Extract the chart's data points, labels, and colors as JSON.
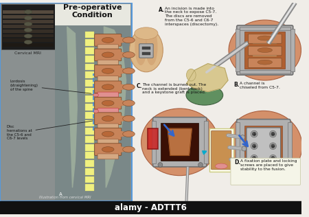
{
  "watermark": "alamy - ADTTT6",
  "watermark_color": "#ffffff",
  "watermark_bg": "#111111",
  "bg_color": "#f0ede8",
  "left_panel": {
    "title": "Pre-operative\nCondition",
    "border_color": "#5599dd",
    "bg_color": "#8a9090",
    "mri_label": "Cervical MRI",
    "label1": "Lordosis\n(straightening)\nof the spine",
    "label2": "Disc\nhernations at\nthe C5-6 and\nC6-7 levels",
    "bottom_label": "Illustration from cervical MRI"
  },
  "step_A_text": "An incision is made into\nthe neck to expose C5-7.\nThe discs are removed\nfrom the C5-6 and C6-7\ninterspaces (discectomy).",
  "step_B_text": "A channel is\nchiseled from C5-7.",
  "step_C_text": "The channel is burned out. The\nneck is extended (bent back)\nand a keystone graft is placed.",
  "step_D_text": "A fixation plate and locking\nscrews are placed to give\nstability to the fusion.",
  "spine_color": "#c8845a",
  "disc_color": "#d4a882",
  "spinal_cord_color": "#eeeea0",
  "skin_color": "#ddb888",
  "skin_dark": "#c09060",
  "metal_color": "#b0b0b0",
  "metal_dark": "#707070",
  "graft_color": "#b87040",
  "tissue_color": "#cc8050",
  "tissue_dark": "#a06030",
  "glove_color": "#d8c890",
  "green_fabric": "#609060",
  "red_disc": "#e09090",
  "blood_dark": "#3a1005",
  "yellow_cord": "#f0f080",
  "screw_color": "#909090",
  "blue_arrow": "#3366cc"
}
